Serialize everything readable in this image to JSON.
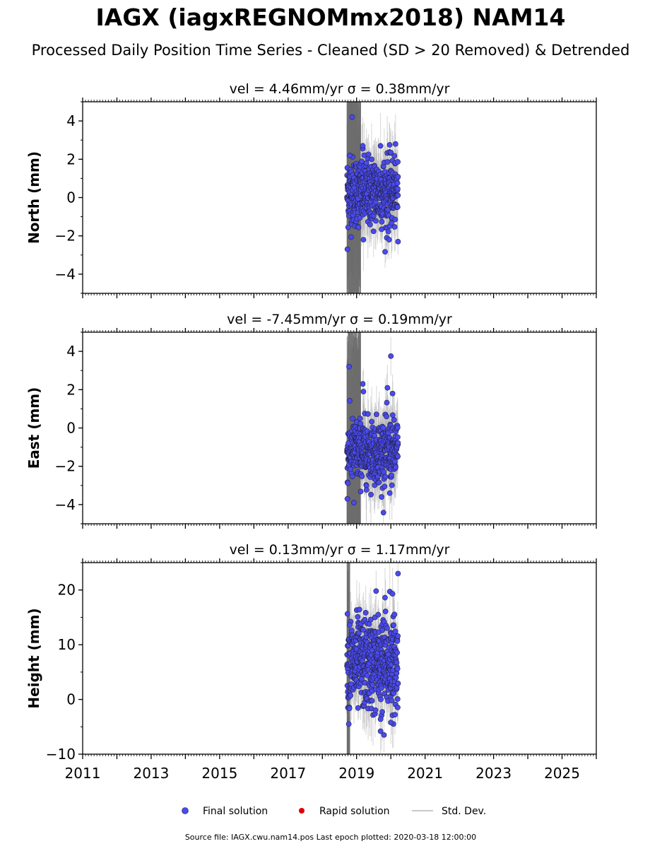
{
  "title": "IAGX (iagxREGNOMmx2018) NAM14",
  "subtitle": "Processed Daily Position Time Series - Cleaned (SD > 20 Removed) & Detrended",
  "footer": "Source file: IAGX.cwu.nam14.pos  Last epoch plotted: 2020-03-18 12:00:00",
  "legend": {
    "final_label": "Final solution",
    "rapid_label": "Rapid solution",
    "std_label": "Std. Dev.",
    "final_color": "#4a4aee",
    "rapid_color": "#dd0000",
    "std_color": "#c8c8c8"
  },
  "colors": {
    "marker": "#4a4aee",
    "marker_edge": "#222244",
    "band": "#6e6e6e",
    "std": "#b4b4b4"
  },
  "chart_data": [
    {
      "type": "scatter",
      "component": "north",
      "title": "vel = 4.46mm/yr   σ = 0.38mm/yr",
      "ylabel": "North (mm)",
      "xlim": [
        2011,
        2026
      ],
      "ylim": [
        -5,
        5
      ],
      "yticks": [
        -4,
        -2,
        0,
        2,
        4
      ],
      "xticks": [
        2011,
        2013,
        2015,
        2017,
        2019,
        2021,
        2023,
        2025
      ],
      "show_xticklabels": false,
      "data_range": [
        2018.72,
        2020.21
      ],
      "center": 0.3,
      "spread": 0.9,
      "std_base": 1.3,
      "dense_band": [
        2018.72,
        2019.12
      ],
      "notable_points": [
        [
          2018.87,
          4.2
        ],
        [
          2018.73,
          -2.7
        ],
        [
          2019.2,
          -2.2
        ],
        [
          2020.21,
          -2.3
        ],
        [
          2019.18,
          2.7
        ],
        [
          2019.7,
          2.7
        ],
        [
          2020.0,
          2.35
        ],
        [
          2018.8,
          2.2
        ],
        [
          2019.88,
          -2.1
        ],
        [
          2019.95,
          -2.2
        ]
      ]
    },
    {
      "type": "scatter",
      "component": "east",
      "title": "vel = -7.45mm/yr   σ = 0.19mm/yr",
      "ylabel": "East (mm)",
      "xlim": [
        2011,
        2026
      ],
      "ylim": [
        -5,
        5
      ],
      "yticks": [
        -4,
        -2,
        0,
        2,
        4
      ],
      "xticks": [
        2011,
        2013,
        2015,
        2017,
        2019,
        2021,
        2023,
        2025
      ],
      "show_xticklabels": false,
      "data_range": [
        2018.72,
        2020.21
      ],
      "center": -1.2,
      "spread": 0.8,
      "std_base": 1.3,
      "dense_band": [
        2018.72,
        2019.12
      ],
      "notable_points": [
        [
          2020.0,
          3.75
        ],
        [
          2018.78,
          3.2
        ],
        [
          2019.18,
          2.3
        ],
        [
          2019.9,
          2.1
        ],
        [
          2020.05,
          1.8
        ],
        [
          2018.73,
          -3.7
        ],
        [
          2018.92,
          -3.9
        ],
        [
          2019.73,
          -3.6
        ],
        [
          2019.97,
          -3.4
        ],
        [
          2019.2,
          1.9
        ]
      ]
    },
    {
      "type": "scatter",
      "component": "height",
      "title": "vel = 0.13mm/yr   σ = 1.17mm/yr",
      "ylabel": "Height (mm)",
      "xlim": [
        2011,
        2026
      ],
      "ylim": [
        -10,
        25
      ],
      "yticks": [
        -10,
        0,
        10,
        20
      ],
      "xticks": [
        2011,
        2013,
        2015,
        2017,
        2019,
        2021,
        2023,
        2025
      ],
      "xticklabels": [
        "2011",
        "2013",
        "2015",
        "2017",
        "2019",
        "2021",
        "2023",
        "2025"
      ],
      "show_xticklabels": true,
      "data_range": [
        2018.72,
        2020.21
      ],
      "center": 6.5,
      "spread": 4.2,
      "std_base": 4.5,
      "dense_band": [
        2018.72,
        2018.8
      ],
      "notable_points": [
        [
          2020.21,
          23.0
        ],
        [
          2019.57,
          19.8
        ],
        [
          2019.97,
          19.7
        ],
        [
          2020.05,
          19.3
        ],
        [
          2019.83,
          18.6
        ],
        [
          2018.8,
          13.6
        ],
        [
          2019.8,
          -6.5
        ],
        [
          2019.7,
          -5.8
        ],
        [
          2020.0,
          -4.2
        ],
        [
          2019.7,
          -3.6
        ]
      ]
    }
  ]
}
